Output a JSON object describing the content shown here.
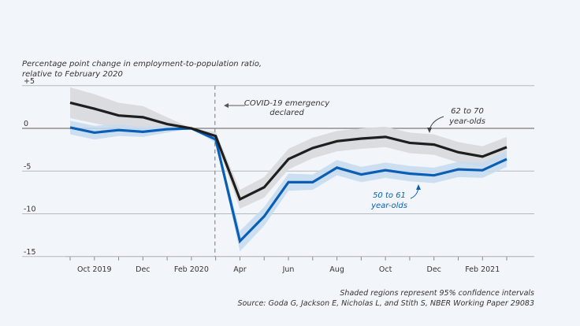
{
  "chart_data": {
    "type": "line",
    "title": "Percentage point change in employment-to-population ratio, relative to February 2020",
    "title_lines": [
      "Percentage point change in employment-to-population ratio,",
      "relative to February 2020"
    ],
    "xlabel": "",
    "ylabel": "Percentage point change in employment-to-population ratio, relative to February 2020",
    "ylim": [
      -15,
      5
    ],
    "yticks": [
      5,
      0,
      -5,
      -10,
      -15
    ],
    "ytick_labels": [
      "+5",
      "0",
      "-5",
      "-10",
      "-15"
    ],
    "grid": true,
    "x": [
      "Sep 2019",
      "Oct 2019",
      "Nov 2019",
      "Dec 2019",
      "Jan 2020",
      "Feb 2020",
      "Mar 2020",
      "Apr 2020",
      "May 2020",
      "Jun 2020",
      "Jul 2020",
      "Aug 2020",
      "Sep 2020",
      "Oct 2020",
      "Nov 2020",
      "Dec 2020",
      "Jan 2021",
      "Feb 2021",
      "Mar 2021"
    ],
    "xtick_labels": [
      {
        "index": 1,
        "label": "Oct 2019"
      },
      {
        "index": 3,
        "label": "Dec"
      },
      {
        "index": 5,
        "label": "Feb 2020"
      },
      {
        "index": 7,
        "label": "Apr"
      },
      {
        "index": 9,
        "label": "Jun"
      },
      {
        "index": 11,
        "label": "Aug"
      },
      {
        "index": 13,
        "label": "Oct"
      },
      {
        "index": 15,
        "label": "Dec"
      },
      {
        "index": 17,
        "label": "Feb 2021"
      }
    ],
    "series": [
      {
        "name": "62 to 70 year-olds",
        "label_lines": [
          "62 to 70",
          "year-olds"
        ],
        "color": "#1e1e1e",
        "band_color": "#d9dadd",
        "values": [
          3.0,
          2.3,
          1.5,
          1.3,
          0.5,
          0.0,
          -0.9,
          -8.3,
          -6.9,
          -3.6,
          -2.3,
          -1.5,
          -1.2,
          -1.0,
          -1.7,
          -1.9,
          -2.8,
          -3.3,
          -2.2
        ],
        "ci_half_width": [
          1.8,
          1.7,
          1.5,
          1.3,
          0.8,
          0.0,
          0.5,
          1.1,
          1.2,
          1.2,
          1.2,
          1.2,
          1.2,
          1.2,
          1.2,
          1.2,
          1.2,
          1.2,
          1.2
        ]
      },
      {
        "name": "50 to 61 year-olds",
        "label_lines": [
          "50 to 61",
          "year-olds"
        ],
        "color": "#0a5fb4",
        "band_color": "#c6dbef",
        "values": [
          0.1,
          -0.5,
          -0.2,
          -0.4,
          -0.1,
          0.0,
          -1.3,
          -13.2,
          -10.3,
          -6.3,
          -6.3,
          -4.6,
          -5.4,
          -4.9,
          -5.3,
          -5.5,
          -4.8,
          -4.9,
          -3.6
        ],
        "ci_half_width": [
          0.8,
          0.8,
          0.7,
          0.6,
          0.4,
          0.0,
          0.4,
          1.2,
          1.1,
          1.0,
          0.9,
          0.9,
          0.9,
          0.9,
          0.9,
          0.9,
          0.9,
          0.9,
          0.9
        ]
      }
    ],
    "annotations": [
      {
        "name": "covid-emergency",
        "x_index": 6,
        "text_lines": [
          "COVID-19 emergency",
          "declared"
        ]
      }
    ],
    "legend": "inline labels"
  },
  "footer": {
    "note": "Shaded regions represent 95% confidence intervals",
    "source": "Source: Goda G, Jackson E, Nicholas L, and Stith S, NBER Working Paper 29083"
  }
}
